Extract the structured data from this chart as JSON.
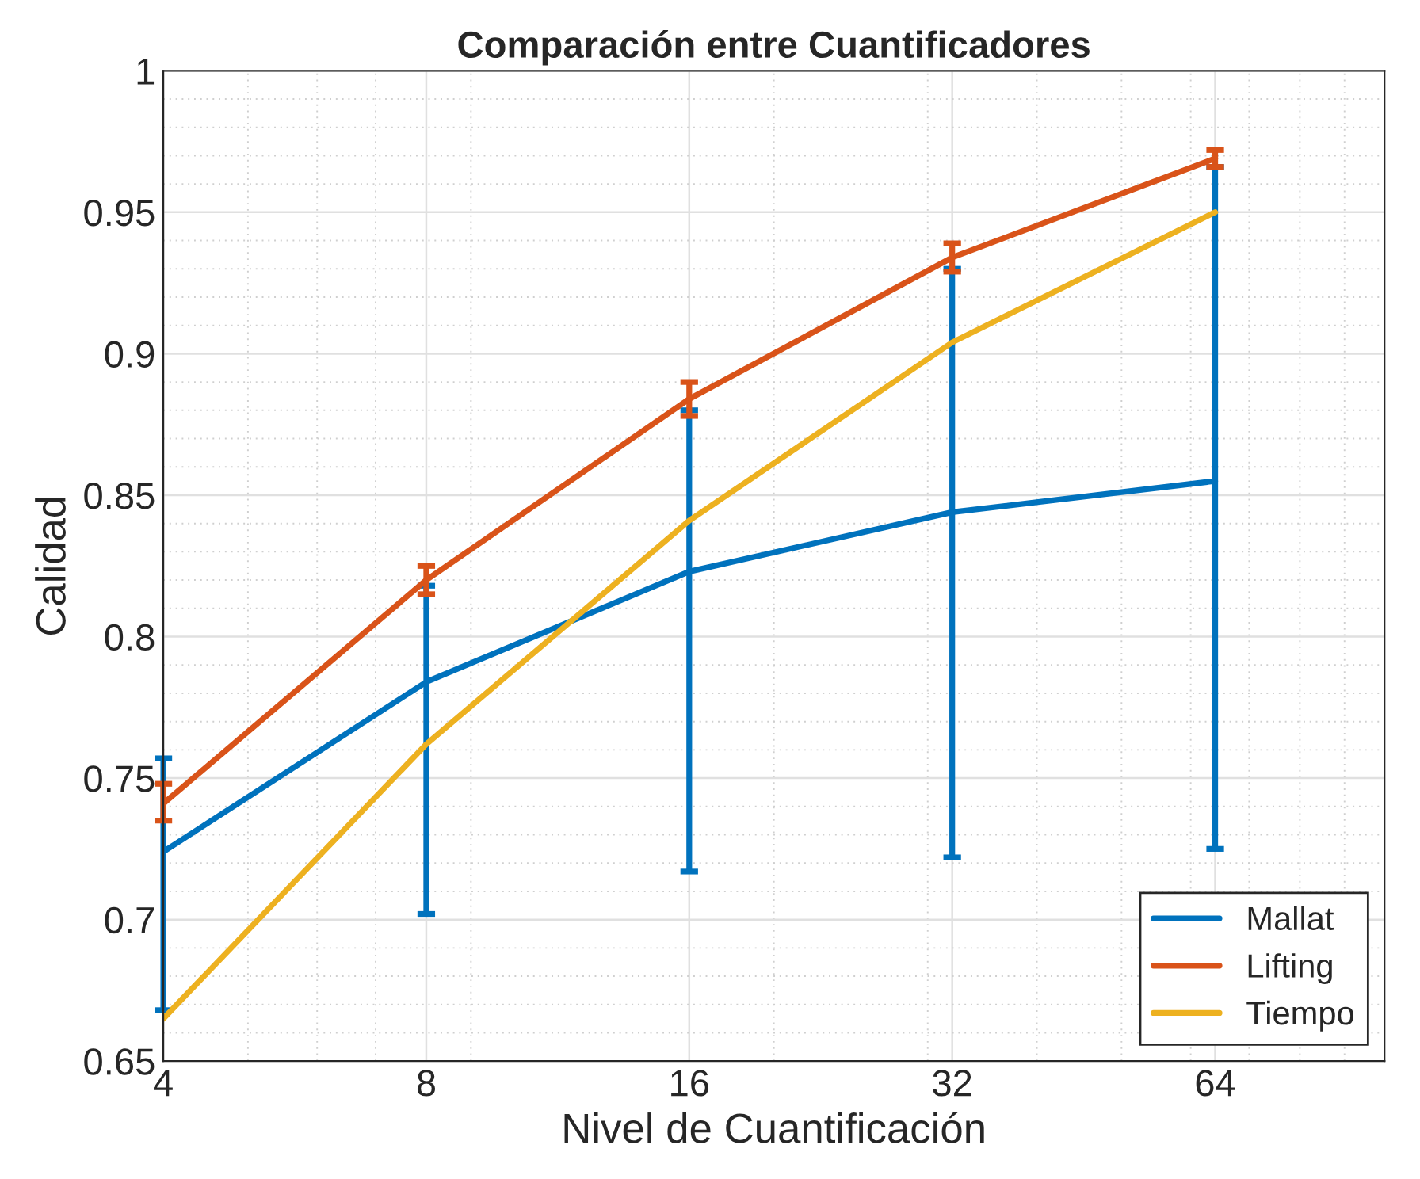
{
  "chart_data": {
    "type": "line",
    "title": "Comparación entre Cuantificadores",
    "xlabel": "Nivel de Cuantificación",
    "ylabel": "Calidad",
    "x": [
      4,
      8,
      16,
      32,
      64
    ],
    "series": [
      {
        "name": "Mallat",
        "color": "#0072bd",
        "values": [
          0.724,
          0.784,
          0.823,
          0.844,
          0.855
        ],
        "errors": [
          [
            0.668,
            0.757
          ],
          [
            0.702,
            0.818
          ],
          [
            0.717,
            0.88
          ],
          [
            0.722,
            0.93
          ],
          [
            0.725,
            0.966
          ]
        ]
      },
      {
        "name": "Lifting",
        "color": "#d95319",
        "values": [
          0.741,
          0.82,
          0.884,
          0.934,
          0.969
        ],
        "errors": [
          [
            0.735,
            0.748
          ],
          [
            0.815,
            0.825
          ],
          [
            0.878,
            0.89
          ],
          [
            0.929,
            0.939
          ],
          [
            0.966,
            0.972
          ]
        ]
      },
      {
        "name": "Tiempo",
        "color": "#edb120",
        "values": [
          0.665,
          0.762,
          0.841,
          0.904,
          0.95
        ]
      }
    ],
    "log": "x",
    "xlim": [
      4,
      100
    ],
    "xticks": [
      4,
      8,
      16,
      32,
      64
    ],
    "ylim": [
      0.65,
      1
    ],
    "yticks": [
      0.65,
      0.7,
      0.75,
      0.8,
      0.85,
      0.9,
      0.95,
      1
    ],
    "grid": true,
    "legend": "bottom right",
    "marker": "none",
    "line_style": "solid"
  }
}
